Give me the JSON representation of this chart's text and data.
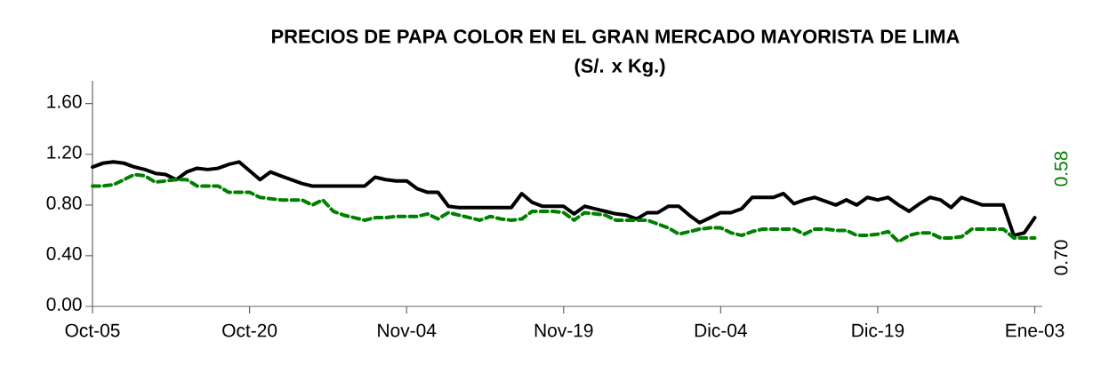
{
  "chart_data": {
    "type": "line",
    "title": "PRECIOS DE PAPA COLOR EN EL GRAN MERCADO MAYORISTA DE LIMA",
    "subtitle": "(S/. x Kg.)",
    "annotations": [
      "0.70",
      "0.58"
    ],
    "categories": [
      "Oct-05",
      null,
      null,
      null,
      null,
      null,
      null,
      null,
      null,
      null,
      null,
      null,
      null,
      null,
      null,
      "Oct-20",
      null,
      null,
      null,
      null,
      null,
      null,
      null,
      null,
      null,
      null,
      null,
      null,
      null,
      null,
      "Nov-04",
      null,
      null,
      null,
      null,
      null,
      null,
      null,
      null,
      null,
      null,
      null,
      null,
      null,
      null,
      "Nov-19",
      null,
      null,
      null,
      null,
      null,
      null,
      null,
      null,
      null,
      null,
      null,
      null,
      null,
      null,
      "Dic-04",
      null,
      null,
      null,
      null,
      null,
      null,
      null,
      null,
      null,
      null,
      null,
      null,
      null,
      null,
      "Dic-19",
      null,
      null,
      null,
      null,
      null,
      null,
      null,
      null,
      null,
      null,
      null,
      null,
      null,
      null,
      "Ene-03"
    ],
    "ylim": [
      0,
      1.78
    ],
    "yticks": [
      {
        "value": 0,
        "label": "0.00"
      },
      {
        "value": 0.4,
        "label": "0.40"
      },
      {
        "value": 0.8,
        "label": "0.80"
      },
      {
        "value": 1.2,
        "label": "1.20"
      },
      {
        "value": 1.6,
        "label": "1.60"
      }
    ],
    "series": [
      {
        "color": "#000000",
        "line_style": "solid",
        "values": [
          1.1,
          1.13,
          1.14,
          1.13,
          1.1,
          1.08,
          1.05,
          1.04,
          1.0,
          1.06,
          1.09,
          1.08,
          1.09,
          1.12,
          1.14,
          1.07,
          1.0,
          1.06,
          1.03,
          1.0,
          0.97,
          0.95,
          0.95,
          0.95,
          0.95,
          0.95,
          0.95,
          1.02,
          1.0,
          0.99,
          0.99,
          0.93,
          0.9,
          0.9,
          0.79,
          0.78,
          0.78,
          0.78,
          0.78,
          0.78,
          0.78,
          0.89,
          0.82,
          0.79,
          0.79,
          0.79,
          0.73,
          0.79,
          0.77,
          0.75,
          0.73,
          0.72,
          0.69,
          0.74,
          0.74,
          0.79,
          0.79,
          0.72,
          0.66,
          0.7,
          0.74,
          0.74,
          0.77,
          0.86,
          0.86,
          0.86,
          0.89,
          0.81,
          0.84,
          0.86,
          0.83,
          0.8,
          0.84,
          0.8,
          0.86,
          0.84,
          0.86,
          0.8,
          0.75,
          0.81,
          0.86,
          0.84,
          0.78,
          0.86,
          0.83,
          0.8,
          0.8,
          0.8,
          0.56,
          0.58,
          0.7
        ]
      },
      {
        "color": "#008000",
        "line_style": "dashed",
        "values": [
          0.95,
          0.95,
          0.96,
          1.0,
          1.04,
          1.03,
          0.98,
          0.99,
          1.0,
          1.0,
          0.95,
          0.95,
          0.95,
          0.9,
          0.9,
          0.9,
          0.86,
          0.85,
          0.84,
          0.84,
          0.84,
          0.8,
          0.84,
          0.75,
          0.72,
          0.7,
          0.68,
          0.7,
          0.7,
          0.71,
          0.71,
          0.71,
          0.73,
          0.69,
          0.74,
          0.72,
          0.7,
          0.68,
          0.71,
          0.69,
          0.68,
          0.69,
          0.75,
          0.75,
          0.75,
          0.74,
          0.68,
          0.74,
          0.73,
          0.72,
          0.68,
          0.68,
          0.68,
          0.68,
          0.65,
          0.62,
          0.57,
          0.59,
          0.61,
          0.62,
          0.62,
          0.58,
          0.56,
          0.59,
          0.61,
          0.61,
          0.61,
          0.61,
          0.57,
          0.61,
          0.61,
          0.6,
          0.6,
          0.56,
          0.56,
          0.57,
          0.59,
          0.51,
          0.56,
          0.58,
          0.58,
          0.54,
          0.54,
          0.55,
          0.61,
          0.61,
          0.61,
          0.61,
          0.54,
          0.54,
          0.54
        ]
      }
    ]
  }
}
